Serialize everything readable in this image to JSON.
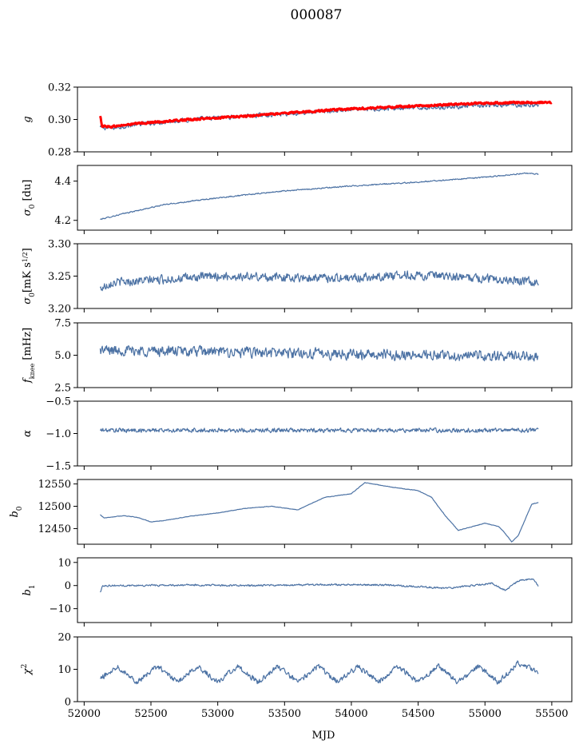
{
  "title": "000087",
  "colors": {
    "series": "#4c72a4",
    "overlay": "#ff0000",
    "axis": "#000000",
    "background": "#ffffff"
  },
  "chart_data": {
    "type": "line",
    "title": "000087",
    "xlabel": "MJD",
    "xlim": [
      51950,
      55650
    ],
    "x_ticks": [
      "52000",
      "52500",
      "53000",
      "53500",
      "54000",
      "54500",
      "55000",
      "55500"
    ],
    "x_tick_values": [
      52000,
      52500,
      53000,
      53500,
      54000,
      54500,
      55000,
      55500
    ],
    "grid": false,
    "panels": [
      {
        "ylabel": "g",
        "ylim": [
          0.28,
          0.32
        ],
        "y_ticks": [
          "0.28",
          "0.30",
          "0.32"
        ],
        "y_tick_values": [
          0.28,
          0.3,
          0.32
        ],
        "series": [
          {
            "color": "#4c72a4",
            "noise": 0.0018,
            "x": [
              52120,
              52200,
              52400,
              52800,
              53200,
              53600,
              54000,
              54400,
              54800,
              55200,
              55400
            ],
            "y": [
              0.295,
              0.2945,
              0.297,
              0.3,
              0.302,
              0.304,
              0.306,
              0.307,
              0.308,
              0.309,
              0.309
            ]
          },
          {
            "color": "#ff0000",
            "width": 3,
            "noise": 0.0008,
            "x": [
              52120,
              52135,
              52200,
              52400,
              52800,
              53200,
              53600,
              54000,
              54400,
              54800,
              55200,
              55500
            ],
            "y": [
              0.302,
              0.296,
              0.2955,
              0.2975,
              0.3,
              0.302,
              0.3045,
              0.3065,
              0.308,
              0.3095,
              0.3105,
              0.3105
            ]
          }
        ]
      },
      {
        "ylabel": "σ0 [du]",
        "ylim": [
          4.15,
          4.48
        ],
        "y_ticks": [
          "4.2",
          "4.4"
        ],
        "y_tick_values": [
          4.2,
          4.4
        ],
        "series": [
          {
            "color": "#4c72a4",
            "noise": 0.004,
            "x": [
              52120,
              52300,
              52600,
              53000,
              53500,
              54000,
              54500,
              55000,
              55300,
              55400
            ],
            "y": [
              4.205,
              4.235,
              4.28,
              4.315,
              4.35,
              4.375,
              4.395,
              4.42,
              4.44,
              4.435
            ]
          }
        ]
      },
      {
        "ylabel": "σ0[mK s^1/2]",
        "ylim": [
          3.2,
          3.3
        ],
        "y_ticks": [
          "3.20",
          "3.25",
          "3.30"
        ],
        "y_tick_values": [
          3.2,
          3.25,
          3.3
        ],
        "series": [
          {
            "color": "#4c72a4",
            "noise": 0.009,
            "x": [
              52120,
              52200,
              52600,
              53000,
              53500,
              54000,
              54400,
              54800,
              55200,
              55400
            ],
            "y": [
              3.23,
              3.24,
              3.245,
              3.25,
              3.248,
              3.247,
              3.252,
              3.248,
              3.245,
              3.24
            ]
          }
        ]
      },
      {
        "ylabel": "fknee [mHz]",
        "ylim": [
          2.5,
          7.5
        ],
        "y_ticks": [
          "2.5",
          "5.0",
          "7.5"
        ],
        "y_tick_values": [
          2.5,
          5.0,
          7.5
        ],
        "series": [
          {
            "color": "#4c72a4",
            "noise": 0.55,
            "x": [
              52120,
              52700,
              53300,
              53900,
              54500,
              55100,
              55400
            ],
            "y": [
              5.4,
              5.3,
              5.2,
              5.1,
              5.0,
              4.9,
              5.0
            ]
          }
        ]
      },
      {
        "ylabel": "α",
        "ylim": [
          -1.5,
          -0.5
        ],
        "y_ticks": [
          "−1.5",
          "−1.0",
          "−0.5"
        ],
        "y_tick_values": [
          -1.5,
          -1.0,
          -0.5
        ],
        "series": [
          {
            "color": "#4c72a4",
            "noise": 0.045,
            "x": [
              52120,
              52700,
              53300,
              53900,
              54500,
              55100,
              55400
            ],
            "y": [
              -0.95,
              -0.95,
              -0.95,
              -0.95,
              -0.95,
              -0.95,
              -0.95
            ]
          }
        ]
      },
      {
        "ylabel": "b0",
        "ylim": [
          12415,
          12560
        ],
        "y_ticks": [
          "12450",
          "12500",
          "12550"
        ],
        "y_tick_values": [
          12450,
          12500,
          12550
        ],
        "series": [
          {
            "color": "#4c72a4",
            "noise": 0.7,
            "x": [
              52120,
              52150,
              52300,
              52400,
              52500,
              52600,
              52800,
              53000,
              53200,
              53400,
              53600,
              53800,
              54000,
              54100,
              54300,
              54500,
              54600,
              54700,
              54800,
              55000,
              55100,
              55150,
              55200,
              55250,
              55300,
              55350,
              55400
            ],
            "y": [
              12481,
              12474,
              12479,
              12475,
              12465,
              12468,
              12478,
              12485,
              12495,
              12500,
              12492,
              12520,
              12528,
              12553,
              12543,
              12535,
              12520,
              12480,
              12446,
              12462,
              12455,
              12440,
              12420,
              12435,
              12470,
              12505,
              12508
            ]
          }
        ]
      },
      {
        "ylabel": "b1",
        "ylim": [
          -16,
          12
        ],
        "y_ticks": [
          "−10",
          "0",
          "10"
        ],
        "y_tick_values": [
          -10,
          0,
          10
        ],
        "series": [
          {
            "color": "#4c72a4",
            "noise": 0.5,
            "x": [
              52120,
              52140,
              52300,
              52800,
              53300,
              53800,
              54300,
              54700,
              54900,
              55050,
              55150,
              55250,
              55350,
              55400
            ],
            "y": [
              -3,
              0,
              0,
              0.2,
              0,
              0.4,
              0.2,
              -1.2,
              0,
              1,
              -2,
              2,
              3,
              0
            ]
          }
        ]
      },
      {
        "ylabel": "χ2",
        "ylim": [
          0,
          20
        ],
        "y_ticks": [
          "0",
          "10",
          "20"
        ],
        "y_tick_values": [
          0,
          10,
          20
        ],
        "series": [
          {
            "color": "#4c72a4",
            "noise": 1.1,
            "x": [
              52120,
              52250,
              52400,
              52550,
              52700,
              52850,
              53000,
              53150,
              53300,
              53450,
              53600,
              53750,
              53900,
              54050,
              54200,
              54350,
              54500,
              54650,
              54800,
              54950,
              55100,
              55250,
              55400
            ],
            "y": [
              7,
              11,
              6,
              11,
              6,
              11,
              6,
              11,
              6,
              11,
              6,
              11,
              6,
              11,
              6,
              11,
              6,
              11,
              6,
              11,
              6,
              12,
              9
            ]
          }
        ]
      }
    ]
  }
}
